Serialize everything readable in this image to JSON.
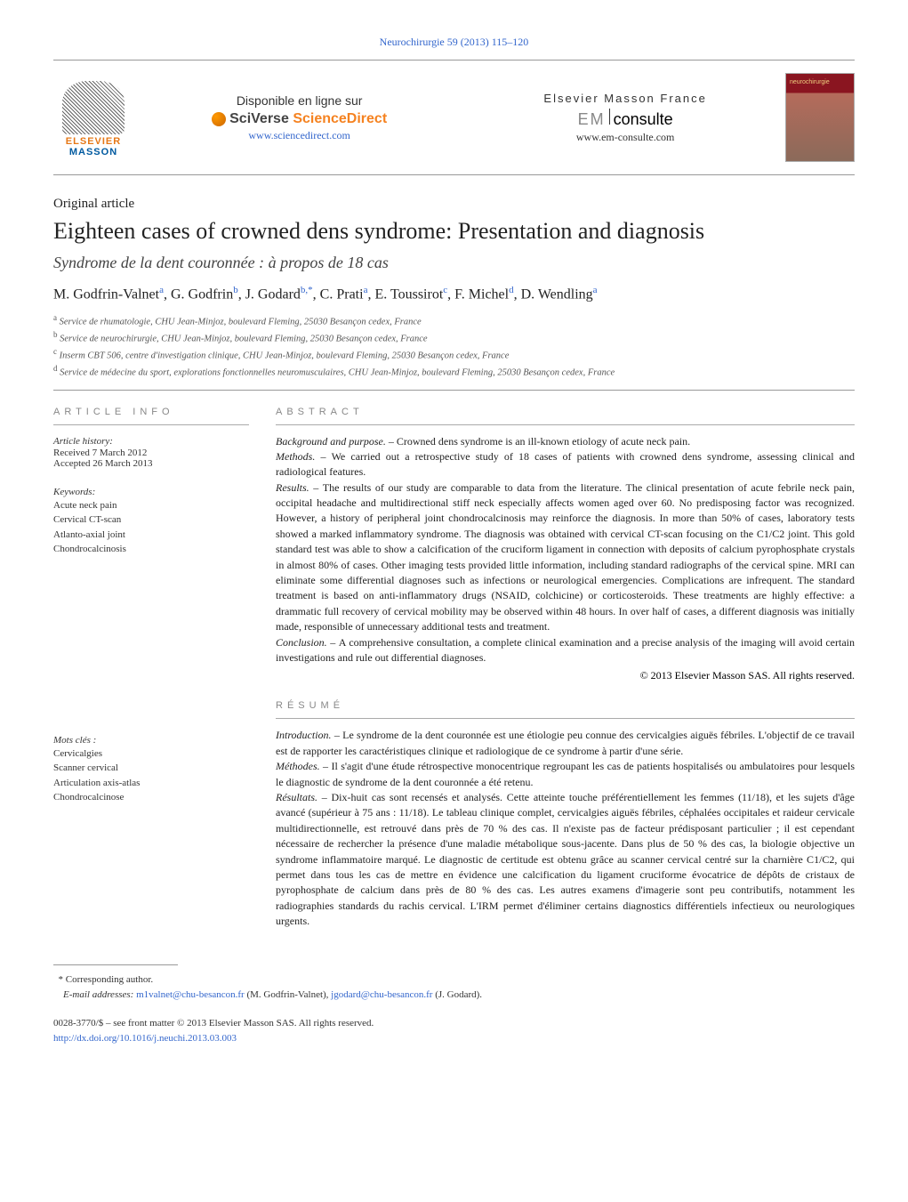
{
  "journal_ref": "Neurochirurgie 59 (2013) 115–120",
  "banner": {
    "disponible": "Disponible en ligne sur",
    "sciverse": "SciVerse",
    "sciencedirect": "ScienceDirect",
    "sd_url": "www.sciencedirect.com",
    "masson_france": "Elsevier Masson France",
    "em": "EM",
    "consulte": "consulte",
    "em_url": "www.em-consulte.com",
    "elsevier": "ELSEVIER",
    "masson": "MASSON"
  },
  "article": {
    "type": "Original article",
    "title": "Eighteen cases of crowned dens syndrome: Presentation and diagnosis",
    "subtitle": "Syndrome de la dent couronnée : à propos de 18 cas",
    "authors_html": "M. Godfrin-Valnet<sup>a</sup>, G. Godfrin<sup>b</sup>, J. Godard<sup>b,*</sup>, C. Prati<sup>a</sup>, E. Toussirot<sup>c</sup>, F. Michel<sup>d</sup>, D. Wendling<sup>a</sup>",
    "affiliations": {
      "a": "Service de rhumatologie, CHU Jean-Minjoz, boulevard Fleming, 25030 Besançon cedex, France",
      "b": "Service de neurochirurgie, CHU Jean-Minjoz, boulevard Fleming, 25030 Besançon cedex, France",
      "c": "Inserm CBT 506, centre d'investigation clinique, CHU Jean-Minjoz, boulevard Fleming, 25030 Besançon cedex, France",
      "d": "Service de médecine du sport, explorations fonctionnelles neuromusculaires, CHU Jean-Minjoz, boulevard Fleming, 25030 Besançon cedex, France"
    }
  },
  "info": {
    "heading": "ARTICLE INFO",
    "history_label": "Article history:",
    "received": "Received 7 March 2012",
    "accepted": "Accepted 26 March 2013",
    "keywords_label": "Keywords:",
    "keywords": [
      "Acute neck pain",
      "Cervical CT-scan",
      "Atlanto-axial joint",
      "Chondrocalcinosis"
    ],
    "motscles_label": "Mots clés :",
    "motscles": [
      "Cervicalgies",
      "Scanner cervical",
      "Articulation axis-atlas",
      "Chondrocalcinose"
    ]
  },
  "abstract": {
    "heading": "ABSTRACT",
    "background_label": "Background and purpose. – ",
    "background": "Crowned dens syndrome is an ill-known etiology of acute neck pain.",
    "methods_label": "Methods. – ",
    "methods": "We carried out a retrospective study of 18 cases of patients with crowned dens syndrome, assessing clinical and radiological features.",
    "results_label": "Results. – ",
    "results": "The results of our study are comparable to data from the literature. The clinical presentation of acute febrile neck pain, occipital headache and multidirectional stiff neck especially affects women aged over 60. No predisposing factor was recognized. However, a history of peripheral joint chondrocalcinosis may reinforce the diagnosis. In more than 50% of cases, laboratory tests showed a marked inflammatory syndrome. The diagnosis was obtained with cervical CT-scan focusing on the C1/C2 joint. This gold standard test was able to show a calcification of the cruciform ligament in connection with deposits of calcium pyrophosphate crystals in almost 80% of cases. Other imaging tests provided little information, including standard radiographs of the cervical spine. MRI can eliminate some differential diagnoses such as infections or neurological emergencies. Complications are infrequent. The standard treatment is based on anti-inflammatory drugs (NSAID, colchicine) or corticosteroids. These treatments are highly effective: a drammatic full recovery of cervical mobility may be observed within 48 hours. In over half of cases, a different diagnosis was initially made, responsible of unnecessary additional tests and treatment.",
    "conclusion_label": "Conclusion. – ",
    "conclusion": "A comprehensive consultation, a complete clinical examination and a precise analysis of the imaging will avoid certain investigations and rule out differential diagnoses.",
    "copyright": "© 2013 Elsevier Masson SAS. All rights reserved."
  },
  "resume": {
    "heading": "RÉSUMÉ",
    "intro_label": "Introduction. – ",
    "intro": "Le syndrome de la dent couronnée est une étiologie peu connue des cervicalgies aiguës fébriles. L'objectif de ce travail est de rapporter les caractéristiques clinique et radiologique de ce syndrome à partir d'une série.",
    "methodes_label": "Méthodes. – ",
    "methodes": "Il s'agit d'une étude rétrospective monocentrique regroupant les cas de patients hospitalisés ou ambulatoires pour lesquels le diagnostic de syndrome de la dent couronnée a été retenu.",
    "resultats_label": "Résultats. – ",
    "resultats": "Dix-huit cas sont recensés et analysés. Cette atteinte touche préférentiellement les femmes (11/18), et les sujets d'âge avancé (supérieur à 75 ans : 11/18). Le tableau clinique complet, cervicalgies aiguës fébriles, céphalées occipitales et raideur cervicale multidirectionnelle, est retrouvé dans près de 70 % des cas. Il n'existe pas de facteur prédisposant particulier ; il est cependant nécessaire de rechercher la présence d'une maladie métabolique sous-jacente. Dans plus de 50 % des cas, la biologie objective un syndrome inflammatoire marqué. Le diagnostic de certitude est obtenu grâce au scanner cervical centré sur la charnière C1/C2, qui permet dans tous les cas de mettre en évidence une calcification du ligament cruciforme évocatrice de dépôts de cristaux de pyrophosphate de calcium dans près de 80 % des cas. Les autres examens d'imagerie sont peu contributifs, notamment les radiographies standards du rachis cervical. L'IRM permet d'éliminer certains diagnostics différentiels infectieux ou neurologiques urgents."
  },
  "footer": {
    "corresponding": "Corresponding author.",
    "email_label": "E-mail addresses:",
    "email1": "m1valnet@chu-besancon.fr",
    "email1_name": "(M. Godfrin-Valnet),",
    "email2": "jgodard@chu-besancon.fr",
    "email2_name": "(J. Godard).",
    "issn_line": "0028-3770/$ – see front matter © 2013 Elsevier Masson SAS. All rights reserved.",
    "doi": "http://dx.doi.org/10.1016/j.neuchi.2013.03.003"
  }
}
